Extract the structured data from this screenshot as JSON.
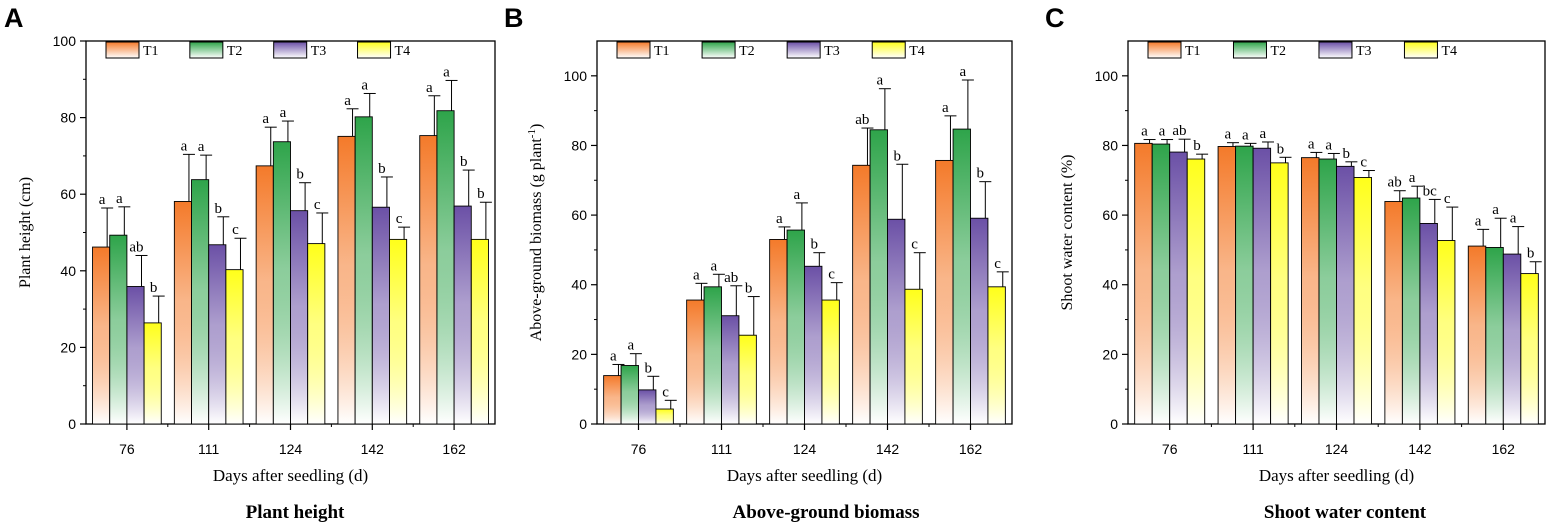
{
  "chart_data": [
    {
      "panel_letter": "A",
      "type": "bar",
      "title": "Plant height",
      "xlabel": "Days after seedling (d)",
      "ylabel": "Plant height (cm)",
      "ylim": [
        0,
        100
      ],
      "yticks": [
        "0",
        "20",
        "40",
        "60",
        "80",
        "100"
      ],
      "categories": [
        "76",
        "111",
        "124",
        "142",
        "162"
      ],
      "series": [
        {
          "name": "T1",
          "values": [
            46.2,
            58.1,
            67.4,
            75.1,
            75.3
          ],
          "errors": [
            10.2,
            12.3,
            10.1,
            7.2,
            10.4
          ],
          "letters": [
            "a",
            "a",
            "a",
            "a",
            "a"
          ]
        },
        {
          "name": "T2",
          "values": [
            49.3,
            63.8,
            73.7,
            80.2,
            81.8
          ],
          "errors": [
            7.4,
            6.4,
            5.4,
            6.1,
            7.9
          ],
          "letters": [
            "a",
            "a",
            "a",
            "a",
            "a"
          ]
        },
        {
          "name": "T3",
          "values": [
            35.9,
            46.8,
            55.7,
            56.6,
            56.9
          ],
          "errors": [
            8.1,
            7.3,
            7.3,
            7.9,
            9.4
          ],
          "letters": [
            "ab",
            "b",
            "b",
            "b",
            "b"
          ]
        },
        {
          "name": "T4",
          "values": [
            26.4,
            40.3,
            47.1,
            48.2,
            48.2
          ],
          "errors": [
            7.0,
            8.2,
            8.0,
            3.2,
            9.7
          ],
          "letters": [
            "b",
            "c",
            "c",
            "c",
            "b"
          ]
        }
      ]
    },
    {
      "panel_letter": "B",
      "type": "bar",
      "title": "Above-ground biomass",
      "xlabel": "Days after seedling (d)",
      "ylabel": "Above-ground biomass (g plant",
      "ylabel_sup": "-1",
      "ylabel_close": ")",
      "ylim": [
        0,
        110
      ],
      "yticks": [
        "0",
        "20",
        "40",
        "60",
        "80",
        "100"
      ],
      "categories": [
        "76",
        "111",
        "124",
        "142",
        "162"
      ],
      "series": [
        {
          "name": "T1",
          "values": [
            13.9,
            35.6,
            53.0,
            74.3,
            75.7
          ],
          "errors": [
            3.2,
            4.8,
            3.6,
            10.7,
            12.8
          ],
          "letters": [
            "a",
            "a",
            "a",
            "ab",
            "a"
          ]
        },
        {
          "name": "T2",
          "values": [
            16.8,
            39.4,
            55.7,
            84.5,
            84.7
          ],
          "errors": [
            3.4,
            3.6,
            7.8,
            11.8,
            14.1
          ],
          "letters": [
            "a",
            "a",
            "a",
            "a",
            "a"
          ]
        },
        {
          "name": "T3",
          "values": [
            9.8,
            31.1,
            45.3,
            58.8,
            59.1
          ],
          "errors": [
            3.9,
            8.6,
            3.9,
            15.8,
            10.5
          ],
          "letters": [
            "b",
            "ab",
            "b",
            "b",
            "b"
          ]
        },
        {
          "name": "T4",
          "values": [
            4.3,
            25.5,
            35.6,
            38.7,
            39.4
          ],
          "errors": [
            2.5,
            11.1,
            5.0,
            10.5,
            4.3
          ],
          "letters": [
            "c",
            "b",
            "c",
            "c",
            "c"
          ]
        }
      ]
    },
    {
      "panel_letter": "C",
      "type": "bar",
      "title": "Shoot water content",
      "xlabel": "Days after seedling (d)",
      "ylabel": "Shoot water content (%)",
      "ylim": [
        0,
        110
      ],
      "yticks": [
        "0",
        "20",
        "40",
        "60",
        "80",
        "100"
      ],
      "categories": [
        "76",
        "111",
        "124",
        "142",
        "162"
      ],
      "series": [
        {
          "name": "T1",
          "values": [
            80.6,
            79.7,
            76.5,
            63.9,
            51.1
          ],
          "errors": [
            1.1,
            1.1,
            1.5,
            3.1,
            4.8
          ],
          "letters": [
            "a",
            "a",
            "a",
            "ab",
            "a"
          ]
        },
        {
          "name": "T2",
          "values": [
            80.4,
            79.8,
            76.1,
            64.9,
            50.7
          ],
          "errors": [
            1.3,
            0.8,
            1.6,
            3.4,
            8.4
          ],
          "letters": [
            "a",
            "a",
            "a",
            "a",
            "a"
          ]
        },
        {
          "name": "T3",
          "values": [
            78.1,
            79.2,
            74.0,
            57.6,
            48.8
          ],
          "errors": [
            3.7,
            1.8,
            1.3,
            6.9,
            7.9
          ],
          "letters": [
            "ab",
            "a",
            "b",
            "bc",
            "a"
          ]
        },
        {
          "name": "T4",
          "values": [
            76.1,
            75.0,
            70.8,
            52.7,
            43.2
          ],
          "errors": [
            1.4,
            1.6,
            2.0,
            9.6,
            3.4
          ],
          "letters": [
            "b",
            "b",
            "c",
            "c",
            "b"
          ]
        }
      ]
    }
  ],
  "colors": {
    "T1": "#f47a2a",
    "T2": "#2ea44a",
    "T3": "#6b50a6",
    "T4": "#ffff1a"
  }
}
